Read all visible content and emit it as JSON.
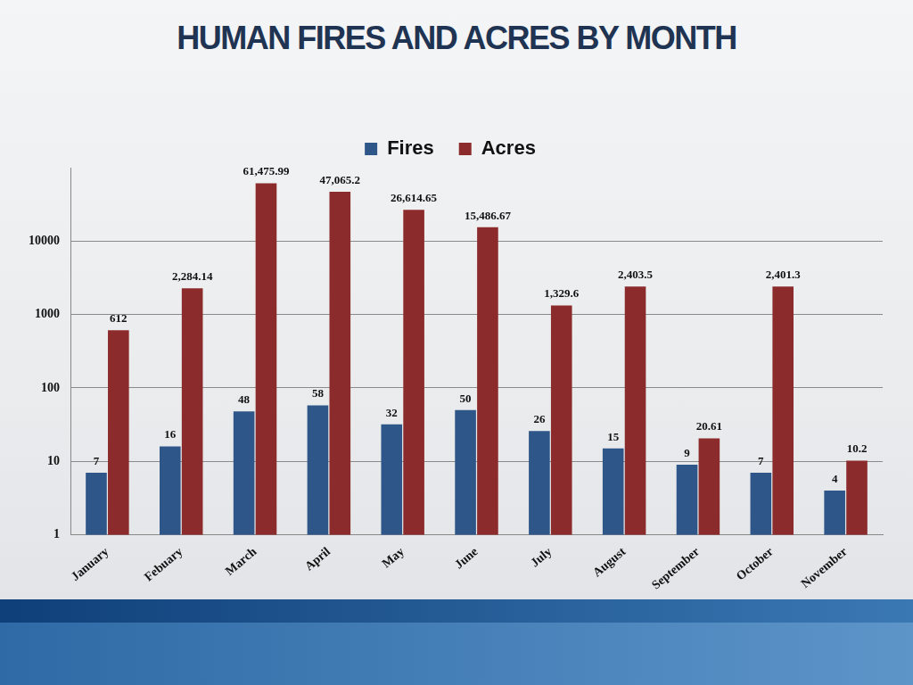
{
  "chart_data": {
    "type": "bar",
    "title": "HUMAN FIRES AND ACRES BY MONTH",
    "categories": [
      "January",
      "Febuary",
      "March",
      "April",
      "May",
      "June",
      "July",
      "August",
      "September",
      "October",
      "November"
    ],
    "series": [
      {
        "name": "Fires",
        "color": "#2f5688",
        "values": [
          7,
          16,
          48,
          58,
          32,
          50,
          26,
          15,
          9,
          7,
          4
        ]
      },
      {
        "name": "Acres",
        "color": "#8c2b2b",
        "values": [
          612,
          2284.14,
          61475.99,
          47065.2,
          26614.65,
          15486.67,
          1329.6,
          2403.5,
          20.61,
          2401.3,
          10.2
        ],
        "value_labels": [
          "612",
          "2,284.14",
          "61,475.99",
          "47,065.2",
          "26,614.65",
          "15,486.67",
          "1,329.6",
          "2,403.5",
          "20.61",
          "2,401.3",
          "10.2"
        ]
      }
    ],
    "ylim": [
      1,
      100000
    ],
    "yticks": [
      1,
      10,
      100,
      1000,
      10000
    ],
    "log": "y",
    "grid": true,
    "legend": "top",
    "data_labels": true
  }
}
